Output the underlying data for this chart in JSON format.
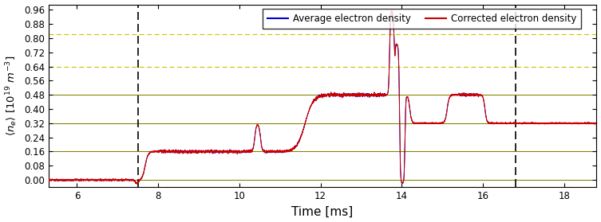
{
  "title": "",
  "xlabel": "Time [ms]",
  "ylabel": "$\\langle n_e \\rangle\\ [10^{19}\\ m^{-3}]$",
  "xlim": [
    5.3,
    18.8
  ],
  "ylim": [
    -0.04,
    0.99
  ],
  "yticks": [
    0.0,
    0.08,
    0.16,
    0.24,
    0.32,
    0.4,
    0.48,
    0.56,
    0.64,
    0.72,
    0.8,
    0.88,
    0.96
  ],
  "xticks": [
    6,
    8,
    10,
    12,
    14,
    16,
    18
  ],
  "hlines_solid": [
    0.0,
    0.16,
    0.32,
    0.48
  ],
  "hlines_dashed": [
    0.64,
    0.82
  ],
  "vlines_dashed": [
    7.5,
    16.8
  ],
  "line_color_avg": "#0000cc",
  "line_color_corr": "#cc0000",
  "legend_labels": [
    "Average electron density",
    "Corrected electron density"
  ],
  "background_color": "#ffffff",
  "hline_solid_color": "#808000",
  "hline_dashed_color": "#c8c800",
  "vline_dashed_color": "#000000",
  "linewidth": 0.7,
  "figsize": [
    7.53,
    2.79
  ],
  "dpi": 100
}
